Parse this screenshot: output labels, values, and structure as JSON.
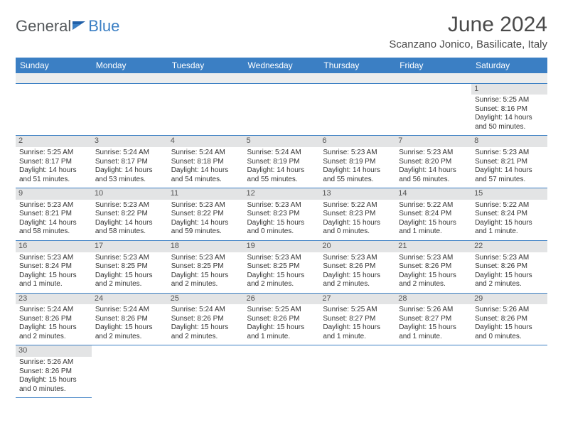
{
  "logo": {
    "word1": "General",
    "word2": "Blue"
  },
  "header": {
    "title": "June 2024",
    "location": "Scanzano Jonico, Basilicate, Italy"
  },
  "colors": {
    "header_bg": "#3b7fc4",
    "header_text": "#ffffff",
    "daynum_bg": "#e3e4e5",
    "row_border": "#3b7fc4"
  },
  "dayNames": [
    "Sunday",
    "Monday",
    "Tuesday",
    "Wednesday",
    "Thursday",
    "Friday",
    "Saturday"
  ],
  "weeks": [
    [
      null,
      null,
      null,
      null,
      null,
      null,
      {
        "n": "1",
        "sr": "Sunrise: 5:25 AM",
        "ss": "Sunset: 8:16 PM",
        "dl": "Daylight: 14 hours and 50 minutes."
      }
    ],
    [
      {
        "n": "2",
        "sr": "Sunrise: 5:25 AM",
        "ss": "Sunset: 8:17 PM",
        "dl": "Daylight: 14 hours and 51 minutes."
      },
      {
        "n": "3",
        "sr": "Sunrise: 5:24 AM",
        "ss": "Sunset: 8:17 PM",
        "dl": "Daylight: 14 hours and 53 minutes."
      },
      {
        "n": "4",
        "sr": "Sunrise: 5:24 AM",
        "ss": "Sunset: 8:18 PM",
        "dl": "Daylight: 14 hours and 54 minutes."
      },
      {
        "n": "5",
        "sr": "Sunrise: 5:24 AM",
        "ss": "Sunset: 8:19 PM",
        "dl": "Daylight: 14 hours and 55 minutes."
      },
      {
        "n": "6",
        "sr": "Sunrise: 5:23 AM",
        "ss": "Sunset: 8:19 PM",
        "dl": "Daylight: 14 hours and 55 minutes."
      },
      {
        "n": "7",
        "sr": "Sunrise: 5:23 AM",
        "ss": "Sunset: 8:20 PM",
        "dl": "Daylight: 14 hours and 56 minutes."
      },
      {
        "n": "8",
        "sr": "Sunrise: 5:23 AM",
        "ss": "Sunset: 8:21 PM",
        "dl": "Daylight: 14 hours and 57 minutes."
      }
    ],
    [
      {
        "n": "9",
        "sr": "Sunrise: 5:23 AM",
        "ss": "Sunset: 8:21 PM",
        "dl": "Daylight: 14 hours and 58 minutes."
      },
      {
        "n": "10",
        "sr": "Sunrise: 5:23 AM",
        "ss": "Sunset: 8:22 PM",
        "dl": "Daylight: 14 hours and 58 minutes."
      },
      {
        "n": "11",
        "sr": "Sunrise: 5:23 AM",
        "ss": "Sunset: 8:22 PM",
        "dl": "Daylight: 14 hours and 59 minutes."
      },
      {
        "n": "12",
        "sr": "Sunrise: 5:23 AM",
        "ss": "Sunset: 8:23 PM",
        "dl": "Daylight: 15 hours and 0 minutes."
      },
      {
        "n": "13",
        "sr": "Sunrise: 5:22 AM",
        "ss": "Sunset: 8:23 PM",
        "dl": "Daylight: 15 hours and 0 minutes."
      },
      {
        "n": "14",
        "sr": "Sunrise: 5:22 AM",
        "ss": "Sunset: 8:24 PM",
        "dl": "Daylight: 15 hours and 1 minute."
      },
      {
        "n": "15",
        "sr": "Sunrise: 5:22 AM",
        "ss": "Sunset: 8:24 PM",
        "dl": "Daylight: 15 hours and 1 minute."
      }
    ],
    [
      {
        "n": "16",
        "sr": "Sunrise: 5:23 AM",
        "ss": "Sunset: 8:24 PM",
        "dl": "Daylight: 15 hours and 1 minute."
      },
      {
        "n": "17",
        "sr": "Sunrise: 5:23 AM",
        "ss": "Sunset: 8:25 PM",
        "dl": "Daylight: 15 hours and 2 minutes."
      },
      {
        "n": "18",
        "sr": "Sunrise: 5:23 AM",
        "ss": "Sunset: 8:25 PM",
        "dl": "Daylight: 15 hours and 2 minutes."
      },
      {
        "n": "19",
        "sr": "Sunrise: 5:23 AM",
        "ss": "Sunset: 8:25 PM",
        "dl": "Daylight: 15 hours and 2 minutes."
      },
      {
        "n": "20",
        "sr": "Sunrise: 5:23 AM",
        "ss": "Sunset: 8:26 PM",
        "dl": "Daylight: 15 hours and 2 minutes."
      },
      {
        "n": "21",
        "sr": "Sunrise: 5:23 AM",
        "ss": "Sunset: 8:26 PM",
        "dl": "Daylight: 15 hours and 2 minutes."
      },
      {
        "n": "22",
        "sr": "Sunrise: 5:23 AM",
        "ss": "Sunset: 8:26 PM",
        "dl": "Daylight: 15 hours and 2 minutes."
      }
    ],
    [
      {
        "n": "23",
        "sr": "Sunrise: 5:24 AM",
        "ss": "Sunset: 8:26 PM",
        "dl": "Daylight: 15 hours and 2 minutes."
      },
      {
        "n": "24",
        "sr": "Sunrise: 5:24 AM",
        "ss": "Sunset: 8:26 PM",
        "dl": "Daylight: 15 hours and 2 minutes."
      },
      {
        "n": "25",
        "sr": "Sunrise: 5:24 AM",
        "ss": "Sunset: 8:26 PM",
        "dl": "Daylight: 15 hours and 2 minutes."
      },
      {
        "n": "26",
        "sr": "Sunrise: 5:25 AM",
        "ss": "Sunset: 8:26 PM",
        "dl": "Daylight: 15 hours and 1 minute."
      },
      {
        "n": "27",
        "sr": "Sunrise: 5:25 AM",
        "ss": "Sunset: 8:27 PM",
        "dl": "Daylight: 15 hours and 1 minute."
      },
      {
        "n": "28",
        "sr": "Sunrise: 5:26 AM",
        "ss": "Sunset: 8:27 PM",
        "dl": "Daylight: 15 hours and 1 minute."
      },
      {
        "n": "29",
        "sr": "Sunrise: 5:26 AM",
        "ss": "Sunset: 8:26 PM",
        "dl": "Daylight: 15 hours and 0 minutes."
      }
    ],
    [
      {
        "n": "30",
        "sr": "Sunrise: 5:26 AM",
        "ss": "Sunset: 8:26 PM",
        "dl": "Daylight: 15 hours and 0 minutes."
      },
      null,
      null,
      null,
      null,
      null,
      null
    ]
  ]
}
